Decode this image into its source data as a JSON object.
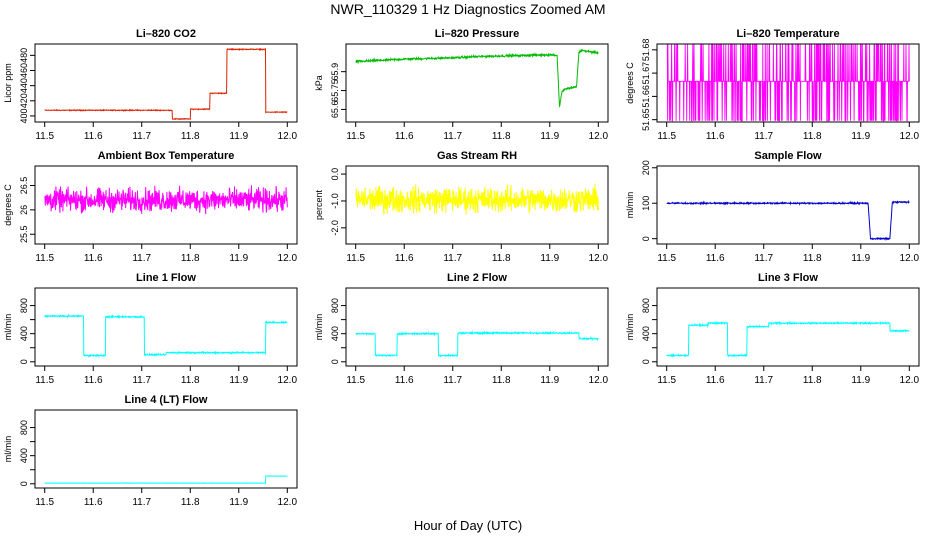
{
  "page": {
    "title": "NWR_110329  1 Hz Diagnostics Zoomed AM",
    "xlabel": "Hour of Day (UTC)"
  },
  "chart_data": [
    {
      "type": "line",
      "title": "Li–820 CO2",
      "xlabel": "",
      "ylabel": "Licor ppm",
      "color": "#dd2200",
      "xlim": [
        11.48,
        12.02
      ],
      "ylim": [
        392,
        495
      ],
      "xticks": [
        11.5,
        11.6,
        11.7,
        11.8,
        11.9,
        12.0
      ],
      "xtick_labels": [
        "11.5",
        "11.6",
        "11.7",
        "11.8",
        "11.9",
        "12.0"
      ],
      "yticks": [
        400,
        420,
        440,
        460,
        480
      ],
      "ytick_labels": [
        "400",
        "420",
        "440",
        "460",
        "480"
      ],
      "noise": 0.8,
      "series": [
        {
          "x": [
            11.5,
            11.7625,
            11.7625,
            11.8,
            11.8,
            11.84,
            11.84,
            11.875,
            11.875,
            11.955,
            11.955,
            12.0
          ],
          "values": [
            407.5,
            407.5,
            396,
            396,
            409,
            409,
            430,
            430,
            488,
            488,
            405,
            405
          ]
        }
      ]
    },
    {
      "type": "line",
      "title": "Li–820 Pressure",
      "xlabel": "",
      "ylabel": "kPa",
      "color": "#00bb00",
      "xlim": [
        11.48,
        12.02
      ],
      "ylim": [
        65.5,
        66.12
      ],
      "xticks": [
        11.5,
        11.6,
        11.7,
        11.8,
        11.9,
        12.0
      ],
      "xtick_labels": [
        "11.5",
        "11.6",
        "11.7",
        "11.8",
        "11.9",
        "12.0"
      ],
      "yticks": [
        65.6,
        65.75,
        65.9
      ],
      "ytick_labels": [
        "65.6",
        "65.75",
        "65.9"
      ],
      "noise": 0.012,
      "series": [
        {
          "x": [
            11.5,
            11.55,
            11.6,
            11.65,
            11.7,
            11.75,
            11.8,
            11.85,
            11.9,
            11.915,
            11.92,
            11.925,
            11.93,
            11.955,
            11.96,
            11.965,
            11.98,
            12.0
          ],
          "values": [
            65.98,
            65.99,
            66.0,
            66.005,
            66.01,
            66.02,
            66.025,
            66.03,
            66.035,
            66.03,
            65.62,
            65.74,
            65.76,
            65.78,
            66.05,
            66.07,
            66.06,
            66.05
          ]
        }
      ]
    },
    {
      "type": "line",
      "title": "Li–820 Temperature",
      "xlabel": "",
      "ylabel": "degrees C",
      "color": "#ff00ff",
      "xlim": [
        11.48,
        12.02
      ],
      "ylim": [
        51.649,
        51.6825
      ],
      "xticks": [
        11.5,
        11.6,
        11.7,
        11.8,
        11.9,
        12.0
      ],
      "xtick_labels": [
        "11.5",
        "11.6",
        "11.7",
        "11.8",
        "11.9",
        "12.0"
      ],
      "yticks": [
        51.65,
        51.66,
        51.67,
        51.68
      ],
      "ytick_labels": [
        "51.65",
        "51.66",
        "51.67",
        "51.68"
      ],
      "levels": [
        51.6495,
        51.6665,
        51.6825
      ],
      "series": [
        {
          "x": [
            11.5,
            12.0
          ],
          "values": [
            51.6665,
            51.6665
          ]
        }
      ]
    },
    {
      "type": "line",
      "title": "Ambient Box Temperature",
      "xlabel": "",
      "ylabel": "degrees C",
      "color": "#ff00ff",
      "xlim": [
        11.48,
        12.02
      ],
      "ylim": [
        25.3,
        26.9
      ],
      "xticks": [
        11.5,
        11.6,
        11.7,
        11.8,
        11.9,
        12.0
      ],
      "xtick_labels": [
        "11.5",
        "11.6",
        "11.7",
        "11.8",
        "11.9",
        "12.0"
      ],
      "yticks": [
        25.5,
        26.0,
        26.5
      ],
      "ytick_labels": [
        "25.5",
        "26",
        "26.5"
      ],
      "noise": 0.35,
      "series": [
        {
          "x": [
            11.5,
            12.0
          ],
          "values": [
            26.2,
            26.2
          ]
        }
      ]
    },
    {
      "type": "line",
      "title": "Gas Stream RH",
      "xlabel": "",
      "ylabel": "percent",
      "color": "#ffff00",
      "xlim": [
        11.48,
        12.02
      ],
      "ylim": [
        -2.6,
        0.3
      ],
      "xticks": [
        11.5,
        11.6,
        11.7,
        11.8,
        11.9,
        12.0
      ],
      "xtick_labels": [
        "11.5",
        "11.6",
        "11.7",
        "11.8",
        "11.9",
        "12.0"
      ],
      "yticks": [
        -2.0,
        -1.0,
        0.0
      ],
      "ytick_labels": [
        "-2.0",
        "-1.0",
        "0.0"
      ],
      "noise": 0.7,
      "series": [
        {
          "x": [
            11.5,
            12.0
          ],
          "values": [
            -0.95,
            -0.95
          ]
        }
      ]
    },
    {
      "type": "line",
      "title": "Sample Flow",
      "xlabel": "",
      "ylabel": "ml/min",
      "color": "#0000cc",
      "xlim": [
        11.48,
        12.02
      ],
      "ylim": [
        -15,
        205
      ],
      "xticks": [
        11.5,
        11.6,
        11.7,
        11.8,
        11.9,
        12.0
      ],
      "xtick_labels": [
        "11.5",
        "11.6",
        "11.7",
        "11.8",
        "11.9",
        "12.0"
      ],
      "yticks": [
        0,
        100,
        200
      ],
      "ytick_labels": [
        "0",
        "100",
        "200"
      ],
      "noise": 3,
      "series": [
        {
          "x": [
            11.5,
            11.915,
            11.92,
            11.96,
            11.965,
            12.0
          ],
          "values": [
            100,
            100,
            0,
            0,
            103,
            103
          ]
        }
      ]
    },
    {
      "type": "line",
      "title": "Line 1 Flow",
      "xlabel": "",
      "ylabel": "ml/min",
      "color": "#00ffff",
      "xlim": [
        11.48,
        12.02
      ],
      "ylim": [
        -60,
        1050
      ],
      "xticks": [
        11.5,
        11.6,
        11.7,
        11.8,
        11.9,
        12.0
      ],
      "xtick_labels": [
        "11.5",
        "11.6",
        "11.7",
        "11.8",
        "11.9",
        "12.0"
      ],
      "yticks": [
        0,
        200,
        400,
        600,
        800
      ],
      "ytick_labels": [
        "0",
        "400",
        "800"
      ],
      "noise": 15,
      "series": [
        {
          "x": [
            11.5,
            11.58,
            11.58,
            11.625,
            11.625,
            11.705,
            11.705,
            11.75,
            11.75,
            11.955,
            11.955,
            12.0
          ],
          "values": [
            650,
            650,
            90,
            90,
            640,
            640,
            100,
            100,
            130,
            130,
            560,
            560
          ]
        }
      ]
    },
    {
      "type": "line",
      "title": "Line 2 Flow",
      "xlabel": "",
      "ylabel": "ml/min",
      "color": "#00ffff",
      "xlim": [
        11.48,
        12.02
      ],
      "ylim": [
        -60,
        1050
      ],
      "xticks": [
        11.5,
        11.6,
        11.7,
        11.8,
        11.9,
        12.0
      ],
      "xtick_labels": [
        "11.5",
        "11.6",
        "11.7",
        "11.8",
        "11.9",
        "12.0"
      ],
      "yticks": [
        0,
        200,
        400,
        600,
        800
      ],
      "ytick_labels": [
        "0",
        "400",
        "800"
      ],
      "noise": 15,
      "series": [
        {
          "x": [
            11.5,
            11.54,
            11.54,
            11.585,
            11.585,
            11.67,
            11.67,
            11.71,
            11.71,
            11.96,
            11.96,
            12.0
          ],
          "values": [
            400,
            400,
            90,
            90,
            400,
            400,
            90,
            90,
            410,
            410,
            330,
            330
          ]
        }
      ]
    },
    {
      "type": "line",
      "title": "Line 3 Flow",
      "xlabel": "",
      "ylabel": "ml/min",
      "color": "#00ffff",
      "xlim": [
        11.48,
        12.02
      ],
      "ylim": [
        -60,
        1050
      ],
      "xticks": [
        11.5,
        11.6,
        11.7,
        11.8,
        11.9,
        12.0
      ],
      "xtick_labels": [
        "11.5",
        "11.6",
        "11.7",
        "11.8",
        "11.9",
        "12.0"
      ],
      "yticks": [
        0,
        200,
        400,
        600,
        800
      ],
      "ytick_labels": [
        "0",
        "400",
        "800"
      ],
      "noise": 15,
      "series": [
        {
          "x": [
            11.5,
            11.545,
            11.545,
            11.585,
            11.585,
            11.625,
            11.625,
            11.665,
            11.665,
            11.71,
            11.71,
            11.96,
            11.96,
            12.0
          ],
          "values": [
            90,
            90,
            520,
            520,
            550,
            550,
            90,
            90,
            500,
            500,
            550,
            550,
            440,
            440
          ]
        }
      ]
    },
    {
      "type": "line",
      "title": "Line 4 (LT) Flow",
      "xlabel": "",
      "ylabel": "ml/min",
      "color": "#00ffff",
      "xlim": [
        11.48,
        12.02
      ],
      "ylim": [
        -60,
        1050
      ],
      "xticks": [
        11.5,
        11.6,
        11.7,
        11.8,
        11.9,
        12.0
      ],
      "xtick_labels": [
        "11.5",
        "11.6",
        "11.7",
        "11.8",
        "11.9",
        "12.0"
      ],
      "yticks": [
        0,
        200,
        400,
        600,
        800
      ],
      "ytick_labels": [
        "0",
        "400",
        "800"
      ],
      "noise": 3,
      "series": [
        {
          "x": [
            11.5,
            11.955,
            11.955,
            12.0
          ],
          "values": [
            10,
            10,
            110,
            110
          ]
        }
      ]
    }
  ]
}
